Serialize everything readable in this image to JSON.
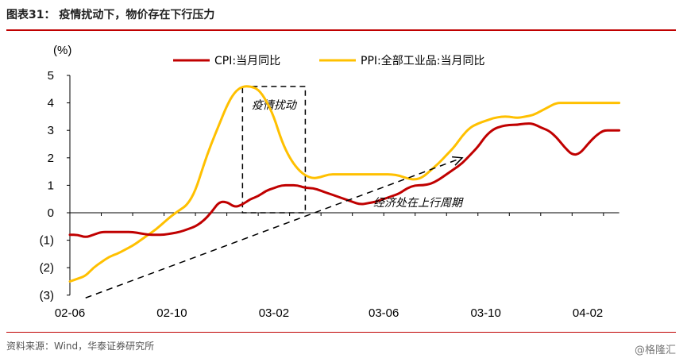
{
  "figure": {
    "title": "图表31：  疫情扰动下，物价存在下行压力",
    "source": "资料来源：Wind，华泰证券研究所",
    "watermark": "@格隆汇"
  },
  "colors": {
    "cpi": "#c00000",
    "ppi": "#ffc000",
    "rule": "#c00000"
  },
  "chart_data": {
    "type": "line",
    "ylabel": "(%)",
    "ylim": [
      -3,
      5
    ],
    "y_ticks": [
      5,
      4,
      3,
      2,
      1,
      0,
      -1,
      -2,
      -3
    ],
    "y_tick_labels": [
      "5",
      "4",
      "3",
      "2",
      "1",
      "0",
      "(1)",
      "(2)",
      "(3)"
    ],
    "x_ticks": [
      "02-06",
      "02-10",
      "03-02",
      "03-06",
      "03-10",
      "04-02"
    ],
    "grid": false,
    "legend_position": "top",
    "series": [
      {
        "name": "CPI:当月同比",
        "color": "#c00000",
        "x": [
          0,
          1,
          2,
          3,
          4,
          5,
          6,
          7,
          8,
          9,
          10,
          11,
          12,
          13,
          14,
          15,
          16,
          17,
          18,
          19,
          20,
          21,
          22,
          23,
          24,
          25,
          26,
          27,
          28,
          29,
          30,
          31,
          32,
          33,
          34,
          35,
          36,
          37,
          38,
          39,
          40,
          41,
          42,
          43,
          44,
          45,
          46,
          47,
          48,
          49,
          50,
          51,
          52,
          53,
          54,
          55,
          56,
          57,
          58,
          59,
          60,
          61,
          62,
          63,
          64,
          65,
          66,
          67,
          68,
          69,
          70
        ],
        "values": [
          -0.8,
          -0.8,
          -0.9,
          -0.8,
          -0.7,
          -0.7,
          -0.7,
          -0.7,
          -0.7,
          -0.75,
          -0.8,
          -0.8,
          -0.8,
          -0.75,
          -0.7,
          -0.6,
          -0.5,
          -0.3,
          0.0,
          0.4,
          0.4,
          0.2,
          0.3,
          0.5,
          0.6,
          0.8,
          0.9,
          1.0,
          1.0,
          1.0,
          0.9,
          0.9,
          0.8,
          0.7,
          0.6,
          0.5,
          0.4,
          0.3,
          0.35,
          0.4,
          0.5,
          0.6,
          0.7,
          0.9,
          1.0,
          1.0,
          1.05,
          1.2,
          1.4,
          1.6,
          1.8,
          2.1,
          2.4,
          2.8,
          3.05,
          3.15,
          3.2,
          3.2,
          3.25,
          3.25,
          3.1,
          3.0,
          2.75,
          2.4,
          2.1,
          2.15,
          2.5,
          2.8,
          3.0,
          3.0,
          3.0
        ]
      },
      {
        "name": "PPI:全部工业品:当月同比",
        "color": "#ffc000",
        "x": [
          0,
          1,
          2,
          3,
          4,
          5,
          6,
          7,
          8,
          9,
          10,
          11,
          12,
          13,
          14,
          15,
          16,
          17,
          18,
          19,
          20,
          21,
          22,
          23,
          24,
          25,
          26,
          27,
          28,
          29,
          30,
          31,
          32,
          33,
          34,
          35,
          36,
          37,
          38,
          39,
          40,
          41,
          42,
          43,
          44,
          45,
          46,
          47,
          48,
          49,
          50,
          51,
          52,
          53,
          54,
          55,
          56,
          57,
          58,
          59,
          60,
          61,
          62,
          63,
          64,
          65,
          66,
          67,
          68,
          69,
          70
        ],
        "values": [
          -2.5,
          -2.4,
          -2.3,
          -2.0,
          -1.8,
          -1.6,
          -1.5,
          -1.35,
          -1.2,
          -1.0,
          -0.8,
          -0.6,
          -0.35,
          -0.1,
          0.1,
          0.3,
          0.8,
          1.7,
          2.5,
          3.2,
          3.9,
          4.4,
          4.6,
          4.6,
          4.5,
          4.1,
          3.5,
          2.6,
          2.0,
          1.6,
          1.35,
          1.25,
          1.3,
          1.4,
          1.4,
          1.4,
          1.4,
          1.4,
          1.4,
          1.4,
          1.4,
          1.4,
          1.35,
          1.25,
          1.2,
          1.3,
          1.55,
          1.8,
          2.1,
          2.4,
          2.8,
          3.1,
          3.25,
          3.35,
          3.45,
          3.5,
          3.5,
          3.45,
          3.5,
          3.55,
          3.7,
          3.85,
          4.0,
          4.0,
          4.0,
          4.0,
          4.0,
          4.0,
          4.0,
          4.0,
          4.0
        ]
      }
    ],
    "annotations": [
      {
        "text": "疫情扰动",
        "type": "box",
        "x_range": [
          22,
          30
        ],
        "y_range": [
          0,
          4.6
        ]
      },
      {
        "text": "经济处在上行周期",
        "type": "arrow",
        "from": [
          2,
          -3.1
        ],
        "to": [
          50,
          2
        ]
      }
    ]
  }
}
